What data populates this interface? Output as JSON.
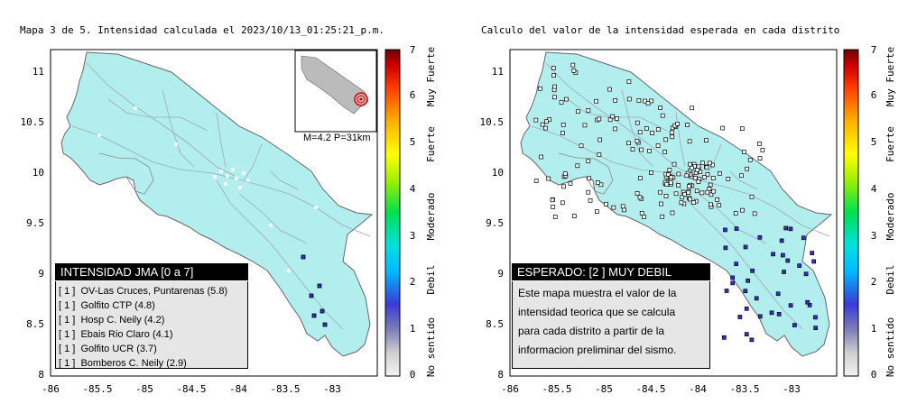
{
  "left_map": {
    "title": "Mapa 3 de 5. Intensidad calculada el 2023/10/13_01:25:21_p.m.",
    "x_ticks": [
      "-86",
      "-85.5",
      "-85",
      "-84.5",
      "-84",
      "-83.5",
      "-83"
    ],
    "y_ticks": [
      "11",
      "10.5",
      "10",
      "9.5",
      "9",
      "8.5",
      "8"
    ],
    "inset_label": "M=4.2 P=31km",
    "legend_title": "INTENSIDAD JMA [0 a 7]",
    "stations": [
      {
        "level": "[ 1 ]",
        "name": "OV-Las Cruces, Puntarenas (5.8)"
      },
      {
        "level": "[ 1 ]",
        "name": "Golfito CTP (4.8)"
      },
      {
        "level": "[ 1 ]",
        "name": "Hosp C. Neily (4.2)"
      },
      {
        "level": "[ 1 ]",
        "name": "Ebais Rio Claro (4.1)"
      },
      {
        "level": "[ 1 ]",
        "name": "Golfito UCR (3.7)"
      },
      {
        "level": "[ 1 ]",
        "name": "Bomberos C. Neily (2.9)"
      }
    ]
  },
  "right_map": {
    "title": "Calculo del valor de la intensidad esperada en cada distrito",
    "x_ticks": [
      "-86",
      "-85.5",
      "-85",
      "-84.5",
      "-84",
      "-83.5",
      "-83"
    ],
    "y_ticks": [
      "11",
      "10.5",
      "10",
      "9.5",
      "9",
      "8.5",
      "8"
    ],
    "box_title": "ESPERADO: [2 ] MUY DEBIL",
    "description_lines": [
      "Este mapa muestra el valor de la",
      "intensidad teorica que se calcula",
      "para cada distrito a partir de la",
      "informacion preliminar del sismo."
    ]
  },
  "colorbar": {
    "ticks": [
      "7",
      "6",
      "5",
      "4",
      "3",
      "2",
      "1",
      "0"
    ],
    "labels": [
      "Muy Fuerte",
      "Fuerte",
      "Moderado",
      "Debil",
      "No sentido"
    ]
  },
  "colors": {
    "land": "#b3eeee",
    "sea": "#ffffff",
    "frame": "#000000",
    "station_marker": "#3333cc"
  }
}
